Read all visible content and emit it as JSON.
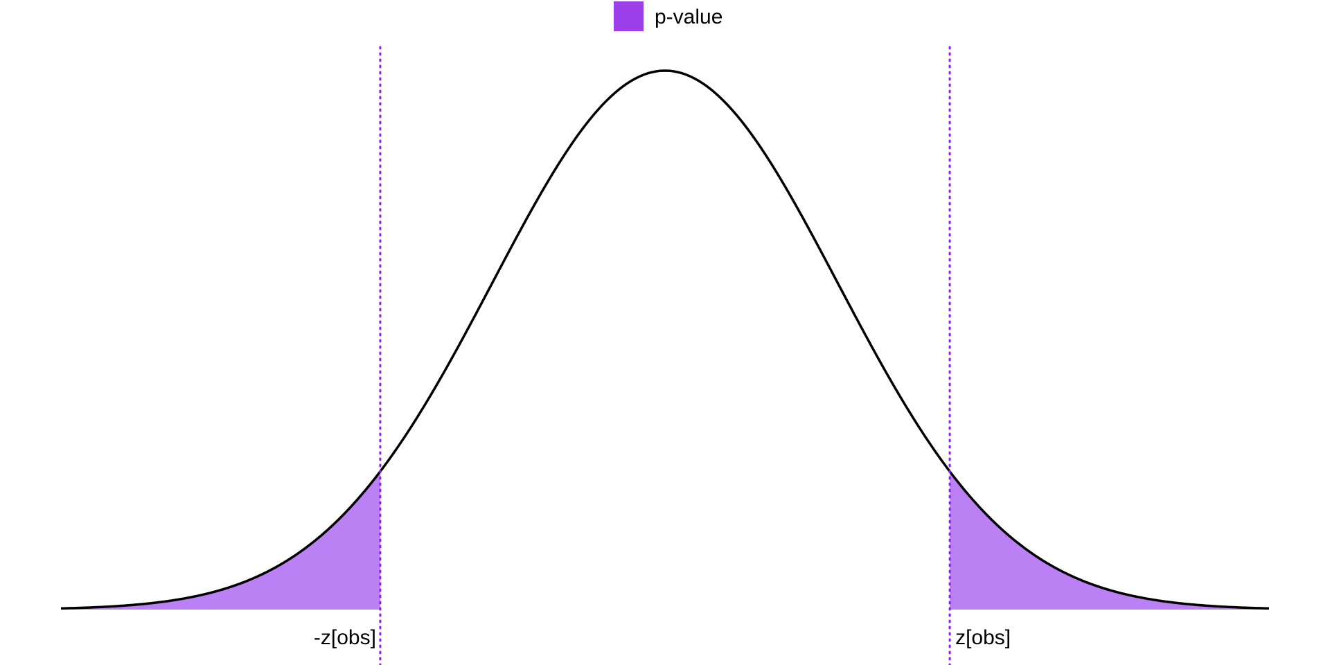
{
  "chart_data": {
    "type": "area",
    "distribution": "standard normal density",
    "x_range": [
      -3.5,
      3.5
    ],
    "z_obs": 1.65,
    "curve": {
      "color": "#000000"
    },
    "shaded_region": {
      "name": "p-value",
      "tails": "two-sided",
      "fill": "#bb80f3",
      "legend_swatch": "#9b3fe8"
    },
    "reference_lines": {
      "style": "dotted",
      "color": "#8b1cf5",
      "labels": [
        "-z[obs]",
        "z[obs]"
      ]
    },
    "legend": {
      "position": "top-center",
      "entries": [
        "p-value"
      ]
    },
    "title": "",
    "xlabel": "",
    "ylabel": "",
    "grid": false,
    "axes_visible": false
  }
}
